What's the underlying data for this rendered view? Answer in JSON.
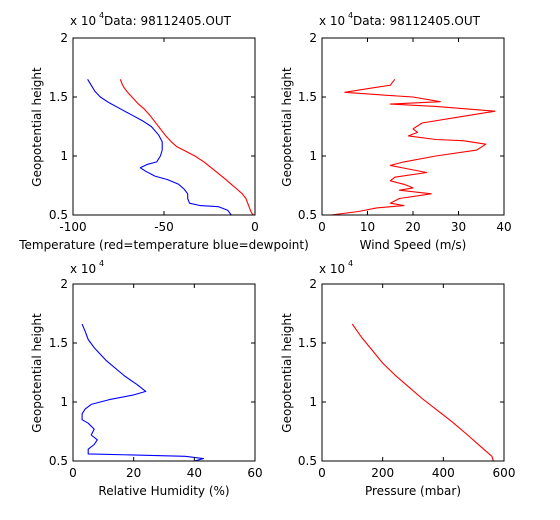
{
  "figure": {
    "background": "#ffffff",
    "axes_color": "#000000"
  },
  "chart_data": [
    {
      "type": "line",
      "title": "Data: 98112405.OUT",
      "xlabel": "Temperature (red=temperature blue=dewpoint)",
      "ylabel": "Geopotential height",
      "y_exponent_label": "x 10",
      "y_exponent": "4",
      "xlim": [
        -100,
        0
      ],
      "ylim": [
        5000,
        20000
      ],
      "xticks": [
        -100,
        -50,
        0
      ],
      "yticks": [
        5000,
        10000,
        15000,
        20000
      ],
      "ytick_labels": [
        "0.5",
        "1",
        "1.5",
        "2"
      ],
      "grid": false,
      "series": [
        {
          "color": "#ff0000",
          "points": [
            [
              -74,
              16500
            ],
            [
              -73,
              16100
            ],
            [
              -72,
              15800
            ],
            [
              -70,
              15400
            ],
            [
              -67,
              14900
            ],
            [
              -64,
              14400
            ],
            [
              -61,
              14000
            ],
            [
              -58,
              13500
            ],
            [
              -55,
              12900
            ],
            [
              -52,
              12300
            ],
            [
              -49,
              11700
            ],
            [
              -46,
              11200
            ],
            [
              -43,
              10800
            ],
            [
              -38,
              10400
            ],
            [
              -33,
              10000
            ],
            [
              -28,
              9500
            ],
            [
              -24,
              9000
            ],
            [
              -20,
              8500
            ],
            [
              -16,
              8000
            ],
            [
              -13,
              7600
            ],
            [
              -10,
              7200
            ],
            [
              -7,
              6800
            ],
            [
              -5,
              6400
            ],
            [
              -4,
              6000
            ],
            [
              -3,
              5600
            ],
            [
              -2,
              5200
            ],
            [
              -1,
              5000
            ]
          ]
        },
        {
          "color": "#0000ff",
          "points": [
            [
              -92,
              16500
            ],
            [
              -90,
              16000
            ],
            [
              -88,
              15500
            ],
            [
              -85,
              15000
            ],
            [
              -80,
              14500
            ],
            [
              -74,
              14000
            ],
            [
              -68,
              13500
            ],
            [
              -62,
              13000
            ],
            [
              -57,
              12500
            ],
            [
              -53,
              11800
            ],
            [
              -51,
              11200
            ],
            [
              -51,
              10500
            ],
            [
              -52,
              10000
            ],
            [
              -54,
              9500
            ],
            [
              -59,
              9300
            ],
            [
              -63,
              9000
            ],
            [
              -60,
              8700
            ],
            [
              -55,
              8300
            ],
            [
              -48,
              8000
            ],
            [
              -42,
              7600
            ],
            [
              -39,
              7200
            ],
            [
              -37,
              6800
            ],
            [
              -37,
              6400
            ],
            [
              -36,
              6000
            ],
            [
              -30,
              5800
            ],
            [
              -20,
              5700
            ],
            [
              -15,
              5400
            ],
            [
              -13,
              5000
            ]
          ]
        }
      ]
    },
    {
      "type": "line",
      "title": "Data: 98112405.OUT",
      "xlabel": "Wind Speed (m/s)",
      "ylabel": "Geopotential height",
      "y_exponent_label": "x 10",
      "y_exponent": "4",
      "xlim": [
        0,
        40
      ],
      "ylim": [
        5000,
        20000
      ],
      "xticks": [
        0,
        10,
        20,
        30,
        40
      ],
      "yticks": [
        5000,
        10000,
        15000,
        20000
      ],
      "ytick_labels": [
        "0.5",
        "1",
        "1.5",
        "2"
      ],
      "grid": false,
      "series": [
        {
          "color": "#ff0000",
          "points": [
            [
              16,
              16500
            ],
            [
              15,
              16000
            ],
            [
              10,
              15700
            ],
            [
              5,
              15400
            ],
            [
              12,
              15200
            ],
            [
              20,
              15000
            ],
            [
              26,
              14600
            ],
            [
              15,
              14400
            ],
            [
              25,
              14200
            ],
            [
              38,
              13800
            ],
            [
              30,
              13300
            ],
            [
              22,
              12800
            ],
            [
              20,
              12300
            ],
            [
              21,
              12000
            ],
            [
              19,
              11700
            ],
            [
              25,
              11400
            ],
            [
              31,
              11300
            ],
            [
              36,
              11000
            ],
            [
              34,
              10500
            ],
            [
              25,
              10000
            ],
            [
              18,
              9500
            ],
            [
              15,
              9200
            ],
            [
              19,
              8900
            ],
            [
              23,
              8600
            ],
            [
              16,
              8200
            ],
            [
              15,
              7900
            ],
            [
              18,
              7600
            ],
            [
              20,
              7300
            ],
            [
              17,
              7100
            ],
            [
              24,
              6800
            ],
            [
              17,
              6400
            ],
            [
              15,
              6000
            ],
            [
              18,
              5800
            ],
            [
              12,
              5600
            ],
            [
              8,
              5300
            ],
            [
              2,
              5000
            ]
          ]
        }
      ]
    },
    {
      "type": "line",
      "title": "",
      "xlabel": "Relative Humidity (%)",
      "ylabel": "Geopotential height",
      "y_exponent_label": "x 10",
      "y_exponent": "4",
      "xlim": [
        0,
        60
      ],
      "ylim": [
        5000,
        20000
      ],
      "xticks": [
        0,
        20,
        40,
        60
      ],
      "yticks": [
        5000,
        10000,
        15000,
        20000
      ],
      "ytick_labels": [
        "0.5",
        "1",
        "1.5",
        "2"
      ],
      "grid": false,
      "series": [
        {
          "color": "#0000ff",
          "points": [
            [
              3,
              16600
            ],
            [
              4,
              16000
            ],
            [
              5,
              15300
            ],
            [
              7,
              14600
            ],
            [
              11,
              13500
            ],
            [
              17,
              12200
            ],
            [
              21,
              11500
            ],
            [
              24,
              10900
            ],
            [
              20,
              10600
            ],
            [
              12,
              10200
            ],
            [
              6,
              9800
            ],
            [
              4,
              9400
            ],
            [
              3,
              9000
            ],
            [
              3,
              8500
            ],
            [
              5,
              8200
            ],
            [
              7,
              7700
            ],
            [
              6,
              7200
            ],
            [
              8,
              6800
            ],
            [
              7,
              6400
            ],
            [
              5,
              6000
            ],
            [
              5,
              5600
            ],
            [
              37,
              5400
            ],
            [
              43,
              5200
            ],
            [
              40,
              5000
            ]
          ]
        }
      ]
    },
    {
      "type": "line",
      "title": "",
      "xlabel": "Pressure (mbar)",
      "ylabel": "Geopotential height",
      "y_exponent_label": "x 10",
      "y_exponent": "4",
      "xlim": [
        0,
        600
      ],
      "ylim": [
        5000,
        20000
      ],
      "xticks": [
        0,
        200,
        400,
        600
      ],
      "yticks": [
        5000,
        10000,
        15000,
        20000
      ],
      "ytick_labels": [
        "0.5",
        "1",
        "1.5",
        "2"
      ],
      "grid": false,
      "series": [
        {
          "color": "#ff0000",
          "points": [
            [
              100,
              16600
            ],
            [
              130,
              15500
            ],
            [
              165,
              14400
            ],
            [
              200,
              13300
            ],
            [
              240,
              12300
            ],
            [
              285,
              11300
            ],
            [
              330,
              10300
            ],
            [
              380,
              9300
            ],
            [
              430,
              8300
            ],
            [
              480,
              7200
            ],
            [
              520,
              6300
            ],
            [
              560,
              5400
            ],
            [
              565,
              5000
            ]
          ]
        }
      ]
    }
  ]
}
